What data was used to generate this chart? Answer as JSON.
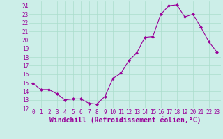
{
  "x": [
    0,
    1,
    2,
    3,
    4,
    5,
    6,
    7,
    8,
    9,
    10,
    11,
    12,
    13,
    14,
    15,
    16,
    17,
    18,
    19,
    20,
    21,
    22,
    23
  ],
  "y": [
    14.9,
    14.2,
    14.2,
    13.7,
    13.0,
    13.1,
    13.1,
    12.6,
    12.5,
    13.4,
    15.5,
    16.1,
    17.6,
    18.5,
    20.3,
    20.4,
    23.0,
    24.0,
    24.1,
    22.7,
    23.0,
    21.5,
    19.8,
    18.6
  ],
  "line_color": "#990099",
  "marker": "D",
  "marker_size": 2,
  "bg_color": "#cceee8",
  "grid_color": "#aaddcc",
  "xlabel": "Windchill (Refroidissement éolien,°C)",
  "xlim": [
    -0.5,
    23.5
  ],
  "ylim": [
    12,
    24.5
  ],
  "yticks": [
    12,
    13,
    14,
    15,
    16,
    17,
    18,
    19,
    20,
    21,
    22,
    23,
    24
  ],
  "xticks": [
    0,
    1,
    2,
    3,
    4,
    5,
    6,
    7,
    8,
    9,
    10,
    11,
    12,
    13,
    14,
    15,
    16,
    17,
    18,
    19,
    20,
    21,
    22,
    23
  ],
  "tick_fontsize": 5.5,
  "xlabel_fontsize": 7.0
}
